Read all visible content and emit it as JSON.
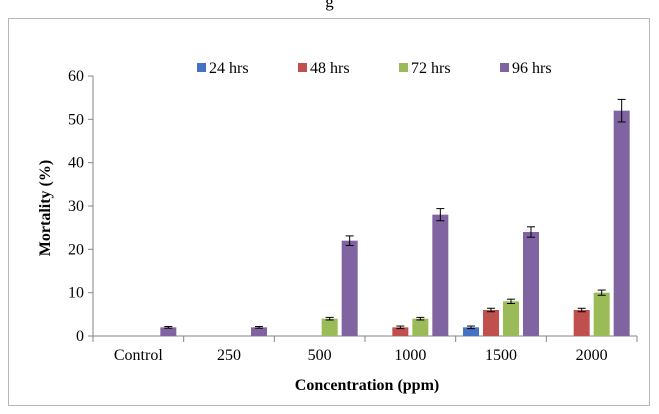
{
  "page_header_text": "g",
  "chart_data": {
    "type": "bar",
    "title": "",
    "xlabel": "Concentration (ppm)",
    "ylabel": "Mortality (%)",
    "ylim": [
      0,
      60
    ],
    "yticks": [
      0,
      10,
      20,
      30,
      40,
      50,
      60
    ],
    "categories": [
      "Control",
      "250",
      "500",
      "1000",
      "1500",
      "2000"
    ],
    "grid": false,
    "legend_position": "top",
    "series": [
      {
        "name": "24 hrs",
        "color": "#4472C4",
        "values": [
          0,
          0,
          0,
          0,
          2,
          0
        ],
        "errors": [
          0,
          0,
          0,
          0,
          0.3,
          0
        ]
      },
      {
        "name": "48 hrs",
        "color": "#C0504D",
        "values": [
          0,
          0,
          0,
          2,
          6,
          6
        ],
        "errors": [
          0,
          0,
          0,
          0.3,
          0.4,
          0.4
        ]
      },
      {
        "name": "72 hrs",
        "color": "#9BBB59",
        "values": [
          0,
          0,
          4,
          4,
          8,
          10
        ],
        "errors": [
          0,
          0,
          0.3,
          0.3,
          0.5,
          0.6
        ]
      },
      {
        "name": "96 hrs",
        "color": "#8064A2",
        "values": [
          2,
          2,
          22,
          28,
          24,
          52
        ],
        "errors": [
          0.2,
          0.2,
          1.1,
          1.4,
          1.2,
          2.6
        ]
      }
    ]
  }
}
